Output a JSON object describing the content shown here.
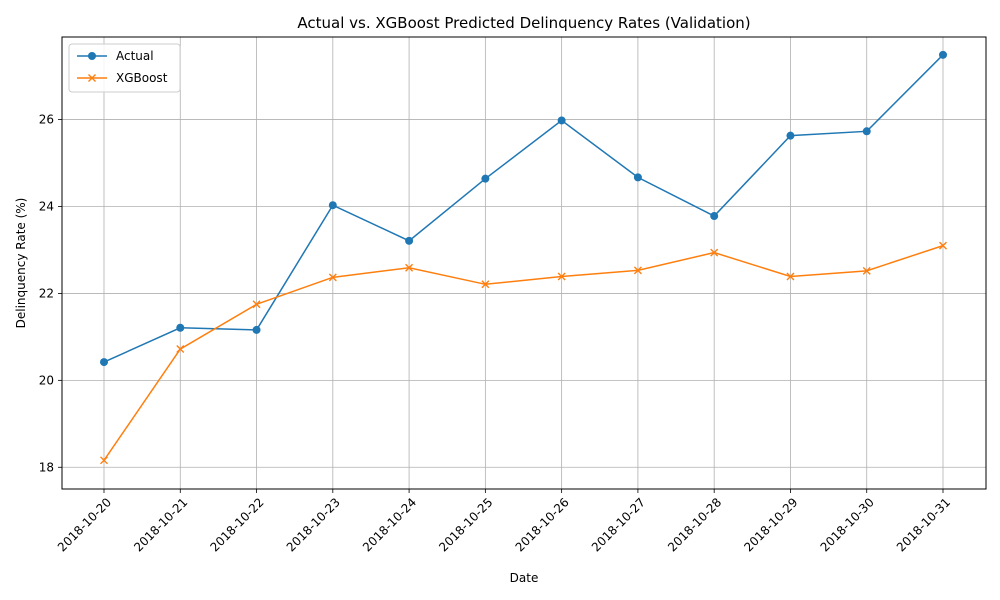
{
  "chart_data": {
    "type": "line",
    "title": "Actual vs. XGBoost Predicted Delinquency Rates (Validation)",
    "xlabel": "Date",
    "ylabel": "Delinquency Rate (%)",
    "categories": [
      "2018-10-20",
      "2018-10-21",
      "2018-10-22",
      "2018-10-23",
      "2018-10-24",
      "2018-10-25",
      "2018-10-26",
      "2018-10-27",
      "2018-10-28",
      "2018-10-29",
      "2018-10-30",
      "2018-10-31"
    ],
    "ylim": [
      17.5,
      27.9
    ],
    "yticks": [
      18,
      20,
      22,
      24,
      26
    ],
    "grid": true,
    "legend_position": "upper-left",
    "series": [
      {
        "name": "Actual",
        "color": "#1f77b4",
        "marker": "circle",
        "values": [
          20.42,
          21.21,
          21.16,
          24.03,
          23.21,
          24.64,
          25.98,
          24.67,
          23.78,
          25.63,
          25.73,
          27.49
        ]
      },
      {
        "name": "XGBoost",
        "color": "#ff7f0e",
        "marker": "x",
        "values": [
          18.16,
          20.72,
          21.75,
          22.37,
          22.59,
          22.21,
          22.39,
          22.53,
          22.94,
          22.39,
          22.52,
          23.1
        ]
      }
    ]
  }
}
